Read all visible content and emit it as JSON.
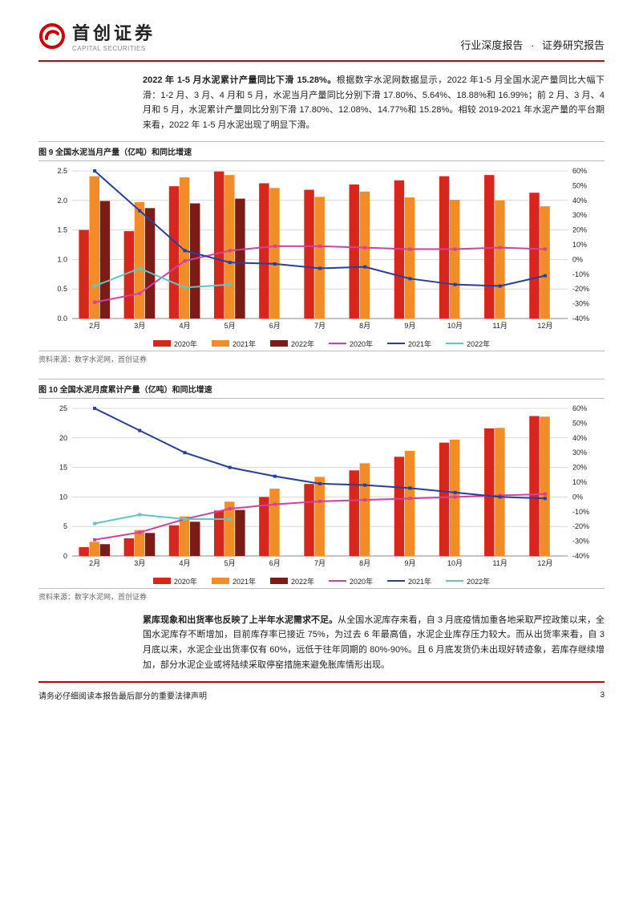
{
  "header": {
    "logo_cn": "首创证券",
    "logo_en": "CAPITAL SECURITIES",
    "right_a": "行业深度报告",
    "right_b": "证券研究报告"
  },
  "para1": {
    "lead": "2022 年 1-5 月水泥累计产量同比下滑 15.28%。",
    "rest": "根据数字水泥网数据显示，2022 年1-5 月全国水泥产量同比大幅下滑：1-2 月、3 月、4 月和 5 月，水泥当月产量同比分别下滑 17.80%、5.64%、18.88%和 16.99%；前 2 月、3 月、4 月和 5 月，水泥累计产量同比分别下滑 17.80%、12.08%、14.77%和 15.28%。相较 2019-2021 年水泥产量的平台期来看，2022 年 1-5 月水泥出现了明显下滑。"
  },
  "fig9": {
    "title": "图 9  全国水泥当月产量（亿吨）和同比增速",
    "source": "资料来源：数字水泥网，首创证券",
    "type": "bar+line_dual_axis",
    "categories": [
      "2月",
      "3月",
      "4月",
      "5月",
      "6月",
      "7月",
      "8月",
      "9月",
      "10月",
      "11月",
      "12月"
    ],
    "bars": {
      "2020年": {
        "color": "#d9261c",
        "values": [
          1.5,
          1.48,
          2.24,
          2.49,
          2.29,
          2.18,
          2.27,
          2.34,
          2.41,
          2.43,
          2.13
        ]
      },
      "2021年": {
        "color": "#f28c28",
        "values": [
          2.41,
          1.97,
          2.39,
          2.43,
          2.21,
          2.06,
          2.15,
          2.05,
          2.01,
          2.0,
          1.9
        ]
      },
      "2022年": {
        "color": "#7b1c17",
        "values": [
          1.99,
          1.87,
          1.95,
          2.03
        ]
      }
    },
    "lines": {
      "2020年_line": {
        "color": "#d63fa0",
        "values": [
          -29,
          -23,
          -1,
          6,
          9,
          9,
          8,
          7,
          7,
          8,
          7
        ]
      },
      "2021年_line": {
        "color": "#2a3ea0",
        "values": [
          60,
          33,
          6,
          -2,
          -3,
          -6,
          -5,
          -13,
          -17,
          -18,
          -11
        ]
      },
      "2022年_line": {
        "color": "#5fc6c6",
        "values": [
          -18,
          -6,
          -19,
          -17
        ]
      }
    },
    "yl": {
      "min": 0.0,
      "max": 2.5,
      "step": 0.5
    },
    "yr": {
      "min": -40,
      "max": 60,
      "step": 10,
      "fmt": "%"
    },
    "background_color": "#ffffff",
    "grid_color": "#d9d9d9",
    "bar_width": 0.22,
    "label_fontsize": 9,
    "tick_fontsize": 9
  },
  "fig10": {
    "title": "图 10  全国水泥月度累计产量（亿吨）和同比增速",
    "source": "资料来源：数字水泥网，首创证券",
    "type": "bar+line_dual_axis",
    "categories": [
      "2月",
      "3月",
      "4月",
      "5月",
      "6月",
      "7月",
      "8月",
      "9月",
      "10月",
      "11月",
      "12月"
    ],
    "bars": {
      "2020年": {
        "color": "#d9261c",
        "values": [
          1.5,
          3.0,
          5.2,
          7.7,
          10.0,
          12.2,
          14.5,
          16.8,
          19.2,
          21.6,
          23.7
        ]
      },
      "2021年": {
        "color": "#f28c28",
        "values": [
          2.4,
          4.4,
          6.7,
          9.2,
          11.4,
          13.4,
          15.7,
          17.8,
          19.7,
          21.7,
          23.6
        ]
      },
      "2022年": {
        "color": "#7b1c17",
        "values": [
          2.0,
          3.9,
          5.8,
          7.8
        ]
      }
    },
    "lines": {
      "2020年_line": {
        "color": "#d63fa0",
        "values": [
          -29,
          -24,
          -15,
          -8,
          -5,
          -3,
          -2,
          -1,
          0,
          1,
          2
        ]
      },
      "2021年_line": {
        "color": "#2a3ea0",
        "values": [
          60,
          45,
          30,
          20,
          14,
          9,
          8,
          6,
          3,
          0,
          -1
        ]
      },
      "2022年_line": {
        "color": "#5fc6c6",
        "values": [
          -18,
          -12,
          -15,
          -15
        ]
      }
    },
    "yl": {
      "min": 0,
      "max": 25,
      "step": 5
    },
    "yr": {
      "min": -40,
      "max": 60,
      "step": 10,
      "fmt": "%"
    },
    "background_color": "#ffffff",
    "grid_color": "#d9d9d9",
    "bar_width": 0.22,
    "label_fontsize": 9,
    "tick_fontsize": 9
  },
  "legend": {
    "bar_2020": "2020年",
    "bar_2021": "2021年",
    "bar_2022": "2022年",
    "line_2020": "2020年",
    "line_2021": "2021年",
    "line_2022": "2022年"
  },
  "para2": {
    "lead": "累库现象和出货率也反映了上半年水泥需求不足。",
    "rest": "从全国水泥库存来看，自 3 月底疫情加重各地采取严控政策以来，全国水泥库存不断增加，目前库存率已接近 75%，为过去 6 年最高值，水泥企业库存压力较大。而从出货率来看，自 3 月底以来，水泥企业出货率仅有 60%，远低于往年同期的 80%-90%。且 6 月底发货仍未出现好转迹象，若库存继续增加，部分水泥企业或将陆续采取停窑措施来避免胀库情形出现。"
  },
  "footer": {
    "disclaimer": "请务必仔细阅读本报告最后部分的重要法律声明",
    "pagenum": "3"
  }
}
